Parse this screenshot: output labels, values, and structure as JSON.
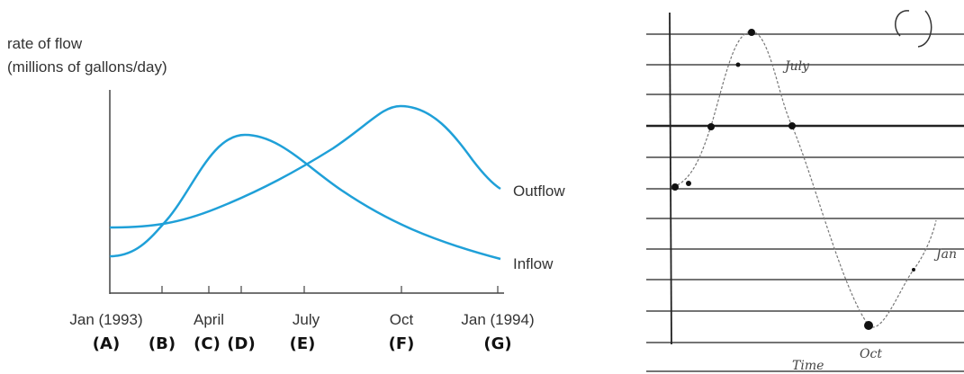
{
  "left_graph": {
    "y_label": [
      "rate of flow",
      "(millions of gallons/day)"
    ],
    "series_labels": [
      "Outflow",
      "Inflow"
    ],
    "x_labels": [
      "Jan (1993)",
      "April",
      "July",
      "Oct",
      "Jan (1994)"
    ],
    "letters": [
      "(A)",
      "(B)",
      "(C)",
      "(D)",
      "(E)",
      "(F)",
      "(G)"
    ]
  },
  "right_sketch": {
    "labels": [
      "July",
      "Jan",
      "Oct",
      "Time"
    ]
  }
}
